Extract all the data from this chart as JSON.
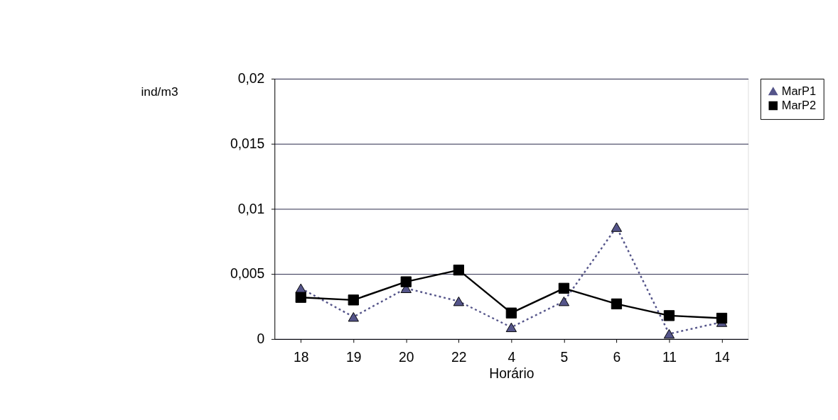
{
  "chart_data": {
    "type": "line",
    "xlabel": "Horário",
    "ylabel": "ind/m3",
    "categories": [
      "18",
      "19",
      "20",
      "22",
      "4",
      "5",
      "6",
      "11",
      "14"
    ],
    "series": [
      {
        "name": "MarP1",
        "color": "#55558a",
        "marker": "triangle",
        "line_style": "dotted",
        "values": [
          0.0039,
          0.0017,
          0.0039,
          0.0029,
          0.0009,
          0.0029,
          0.0086,
          0.0004,
          0.0013
        ]
      },
      {
        "name": "MarP2",
        "color": "#000000",
        "marker": "square",
        "line_style": "solid",
        "values": [
          0.0032,
          0.003,
          0.0044,
          0.0053,
          0.002,
          0.0039,
          0.0027,
          0.0018,
          0.0016
        ]
      }
    ],
    "ylim": [
      0,
      0.02
    ],
    "yticks": [
      {
        "value": 0,
        "label": "0"
      },
      {
        "value": 0.005,
        "label": "0,005"
      },
      {
        "value": 0.01,
        "label": "0,01"
      },
      {
        "value": 0.015,
        "label": "0,015"
      },
      {
        "value": 0.02,
        "label": "0,02"
      }
    ],
    "grid": "y",
    "legend": "right"
  }
}
